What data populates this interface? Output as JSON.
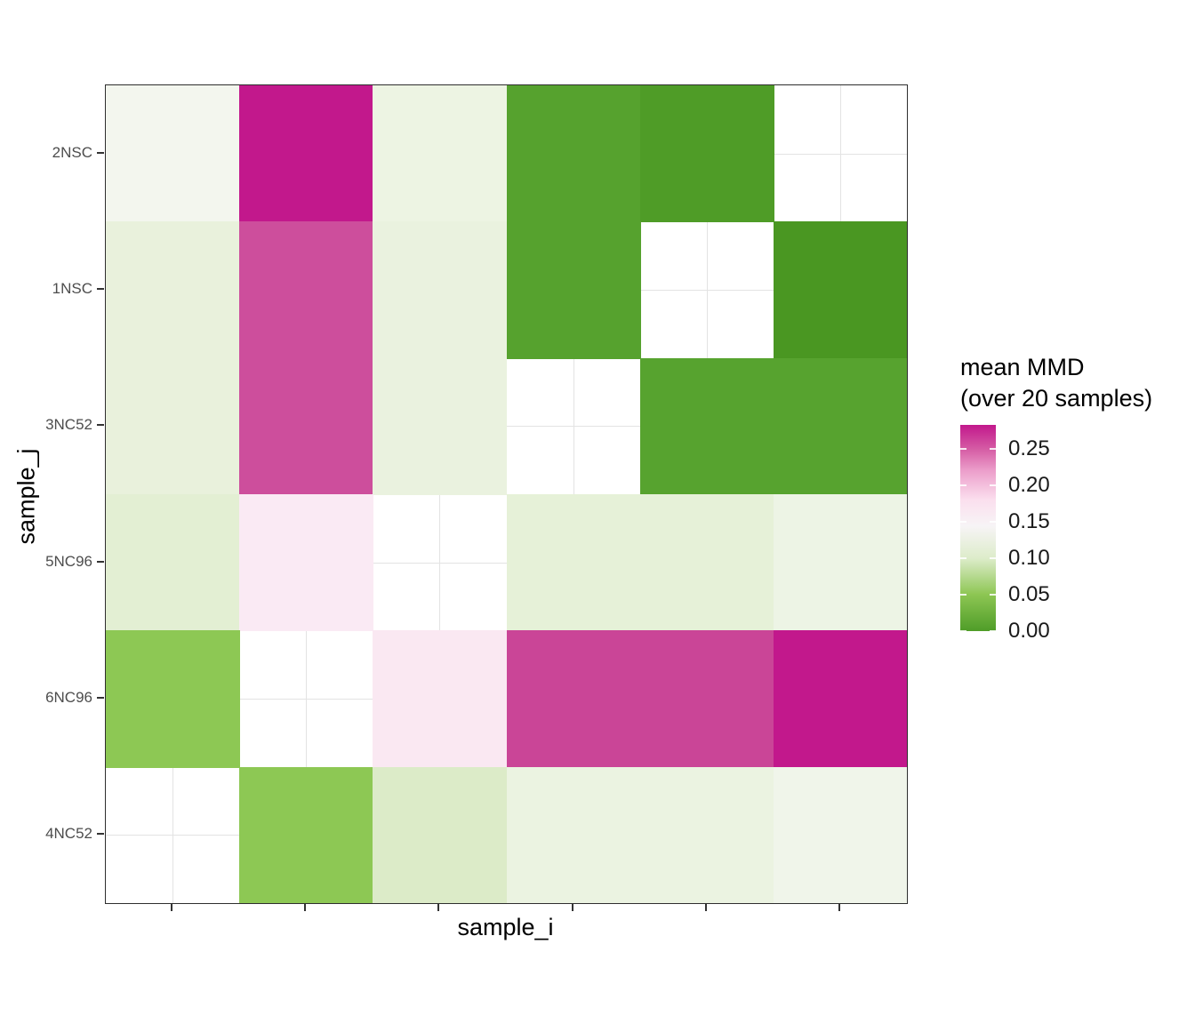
{
  "chart_data": {
    "type": "heatmap",
    "title": "",
    "xlabel": "sample_i",
    "ylabel": "sample_j",
    "x_tick_count": 6,
    "y_categories_top_to_bottom": [
      "2NSC",
      "1NSC",
      "3NC52",
      "5NC96",
      "6NC96",
      "4NC52"
    ],
    "values": [
      [
        0.13,
        0.28,
        0.12,
        0.03,
        0.02,
        null
      ],
      [
        0.12,
        0.24,
        0.12,
        0.03,
        null,
        0.02
      ],
      [
        0.12,
        0.24,
        0.12,
        null,
        0.04,
        0.04
      ],
      [
        0.1,
        0.17,
        null,
        0.11,
        0.11,
        0.12
      ],
      [
        0.06,
        null,
        0.16,
        0.24,
        0.24,
        0.28
      ],
      [
        null,
        0.06,
        0.09,
        0.12,
        0.12,
        0.13
      ]
    ],
    "cell_colors": [
      [
        "#f3f6ee",
        "#c2188c",
        "#edf4e3",
        "#56a22e",
        "#4f9c27",
        null
      ],
      [
        "#e9f1dc",
        "#cd4e9c",
        "#eaf2df",
        "#56a22e",
        null,
        "#4a9722"
      ],
      [
        "#e9f1dc",
        "#cd4e9c",
        "#eaf2df",
        null,
        "#57a32f",
        "#57a32f"
      ],
      [
        "#e3efd3",
        "#faeaf4",
        null,
        "#e6f1d8",
        "#e6f1d8",
        "#edf4e5"
      ],
      [
        "#8dc854",
        null,
        "#fae8f2",
        "#ca4597",
        "#ca4597",
        "#c2188c"
      ],
      [
        null,
        "#8dc854",
        "#dcebc8",
        "#ebf3e1",
        "#ebf3e1",
        "#f0f5ea"
      ]
    ],
    "legend": {
      "title_line1": "mean MMD",
      "title_line2": "(over 20 samples)",
      "tick_labels": [
        "0.25",
        "0.20",
        "0.15",
        "0.10",
        "0.05",
        "0.00"
      ],
      "tick_values": [
        0.25,
        0.2,
        0.15,
        0.1,
        0.05,
        0.0
      ],
      "range": [
        0.0,
        0.283
      ],
      "gradient_stops": [
        {
          "pct": 0,
          "color": "#4f9d28"
        },
        {
          "pct": 17.7,
          "color": "#8dc653"
        },
        {
          "pct": 35.3,
          "color": "#ddecca"
        },
        {
          "pct": 51,
          "color": "#f7f4f6"
        },
        {
          "pct": 63.6,
          "color": "#fbdfee"
        },
        {
          "pct": 77.7,
          "color": "#ec9fcb"
        },
        {
          "pct": 88.3,
          "color": "#d55ca4"
        },
        {
          "pct": 100,
          "color": "#c2188c"
        }
      ]
    },
    "style": {
      "grid_color": "#e3e3e3",
      "panel_border_color": "#2e2e2e",
      "axis_text_color": "#4d4d4d",
      "low_color": "#4f9d28",
      "mid_color": "#f7f7f7",
      "high_color": "#c2188c"
    }
  }
}
